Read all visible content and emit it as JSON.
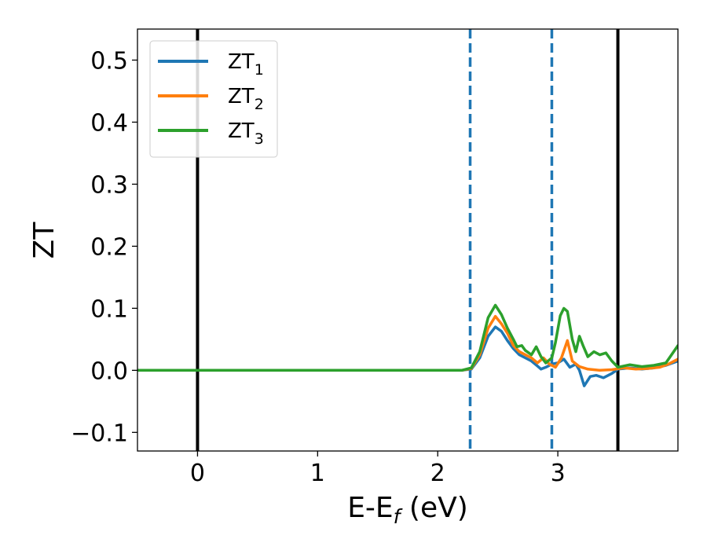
{
  "chart_data": {
    "type": "line",
    "xlabel": {
      "base": "E-E",
      "sub": "f",
      "suffix": " (eV)"
    },
    "ylabel": "ZT",
    "xlim": [
      -0.5,
      4.0
    ],
    "ylim": [
      -0.13,
      0.55
    ],
    "xticks": [
      0,
      1,
      2,
      3
    ],
    "yticks": [
      -0.1,
      0.0,
      0.1,
      0.2,
      0.3,
      0.4,
      0.5
    ],
    "xtick_labels": [
      "0",
      "1",
      "2",
      "3"
    ],
    "ytick_labels": [
      "−0.1",
      "0.0",
      "0.1",
      "0.2",
      "0.3",
      "0.4",
      "0.5"
    ],
    "grid": false,
    "legend_position": "top-left",
    "vlines": [
      {
        "x": 0.0,
        "style": "solid",
        "color": "#000000"
      },
      {
        "x": 3.5,
        "style": "solid",
        "color": "#000000"
      },
      {
        "x": 2.27,
        "style": "dashed",
        "color": "#1f77b4"
      },
      {
        "x": 2.95,
        "style": "dashed",
        "color": "#1f77b4"
      }
    ],
    "series": [
      {
        "name": "ZT",
        "name_sub": "1",
        "color": "#1f77b4",
        "points": [
          [
            -0.5,
            0
          ],
          [
            2.2,
            0
          ],
          [
            2.28,
            0.002
          ],
          [
            2.35,
            0.02
          ],
          [
            2.42,
            0.055
          ],
          [
            2.48,
            0.07
          ],
          [
            2.53,
            0.063
          ],
          [
            2.58,
            0.048
          ],
          [
            2.63,
            0.035
          ],
          [
            2.68,
            0.025
          ],
          [
            2.73,
            0.02
          ],
          [
            2.78,
            0.015
          ],
          [
            2.83,
            0.007
          ],
          [
            2.86,
            0.002
          ],
          [
            2.9,
            0.005
          ],
          [
            2.95,
            0.01
          ],
          [
            3.0,
            0.012
          ],
          [
            3.05,
            0.018
          ],
          [
            3.1,
            0.005
          ],
          [
            3.15,
            0.01
          ],
          [
            3.18,
            0.0
          ],
          [
            3.22,
            -0.025
          ],
          [
            3.27,
            -0.01
          ],
          [
            3.32,
            -0.008
          ],
          [
            3.38,
            -0.012
          ],
          [
            3.45,
            -0.005
          ],
          [
            3.5,
            0.002
          ],
          [
            3.6,
            0.004
          ],
          [
            3.7,
            0.002
          ],
          [
            3.8,
            0.004
          ],
          [
            3.9,
            0.008
          ],
          [
            4.0,
            0.015
          ]
        ]
      },
      {
        "name": "ZT",
        "name_sub": "2",
        "color": "#ff7f0e",
        "points": [
          [
            -0.5,
            0
          ],
          [
            2.2,
            0
          ],
          [
            2.28,
            0.003
          ],
          [
            2.35,
            0.025
          ],
          [
            2.42,
            0.068
          ],
          [
            2.48,
            0.087
          ],
          [
            2.53,
            0.075
          ],
          [
            2.58,
            0.06
          ],
          [
            2.63,
            0.04
          ],
          [
            2.68,
            0.03
          ],
          [
            2.73,
            0.025
          ],
          [
            2.78,
            0.02
          ],
          [
            2.83,
            0.012
          ],
          [
            2.88,
            0.02
          ],
          [
            2.93,
            0.01
          ],
          [
            2.98,
            0.005
          ],
          [
            3.03,
            0.02
          ],
          [
            3.08,
            0.048
          ],
          [
            3.12,
            0.015
          ],
          [
            3.18,
            0.006
          ],
          [
            3.25,
            0.002
          ],
          [
            3.35,
            0.0
          ],
          [
            3.45,
            0.001
          ],
          [
            3.55,
            0.004
          ],
          [
            3.65,
            0.002
          ],
          [
            3.75,
            0.003
          ],
          [
            3.85,
            0.005
          ],
          [
            3.92,
            0.01
          ],
          [
            4.0,
            0.018
          ]
        ]
      },
      {
        "name": "ZT",
        "name_sub": "3",
        "color": "#2ca02c",
        "points": [
          [
            -0.5,
            0
          ],
          [
            2.2,
            0
          ],
          [
            2.28,
            0.004
          ],
          [
            2.35,
            0.03
          ],
          [
            2.42,
            0.085
          ],
          [
            2.48,
            0.105
          ],
          [
            2.53,
            0.09
          ],
          [
            2.58,
            0.068
          ],
          [
            2.63,
            0.05
          ],
          [
            2.66,
            0.038
          ],
          [
            2.7,
            0.04
          ],
          [
            2.73,
            0.032
          ],
          [
            2.78,
            0.025
          ],
          [
            2.82,
            0.038
          ],
          [
            2.86,
            0.022
          ],
          [
            2.9,
            0.012
          ],
          [
            2.95,
            0.02
          ],
          [
            2.98,
            0.045
          ],
          [
            3.02,
            0.088
          ],
          [
            3.05,
            0.1
          ],
          [
            3.08,
            0.095
          ],
          [
            3.12,
            0.05
          ],
          [
            3.15,
            0.03
          ],
          [
            3.18,
            0.055
          ],
          [
            3.21,
            0.04
          ],
          [
            3.25,
            0.022
          ],
          [
            3.3,
            0.03
          ],
          [
            3.35,
            0.025
          ],
          [
            3.4,
            0.028
          ],
          [
            3.45,
            0.015
          ],
          [
            3.5,
            0.005
          ],
          [
            3.6,
            0.009
          ],
          [
            3.7,
            0.006
          ],
          [
            3.8,
            0.008
          ],
          [
            3.9,
            0.012
          ],
          [
            4.0,
            0.04
          ]
        ]
      }
    ]
  }
}
